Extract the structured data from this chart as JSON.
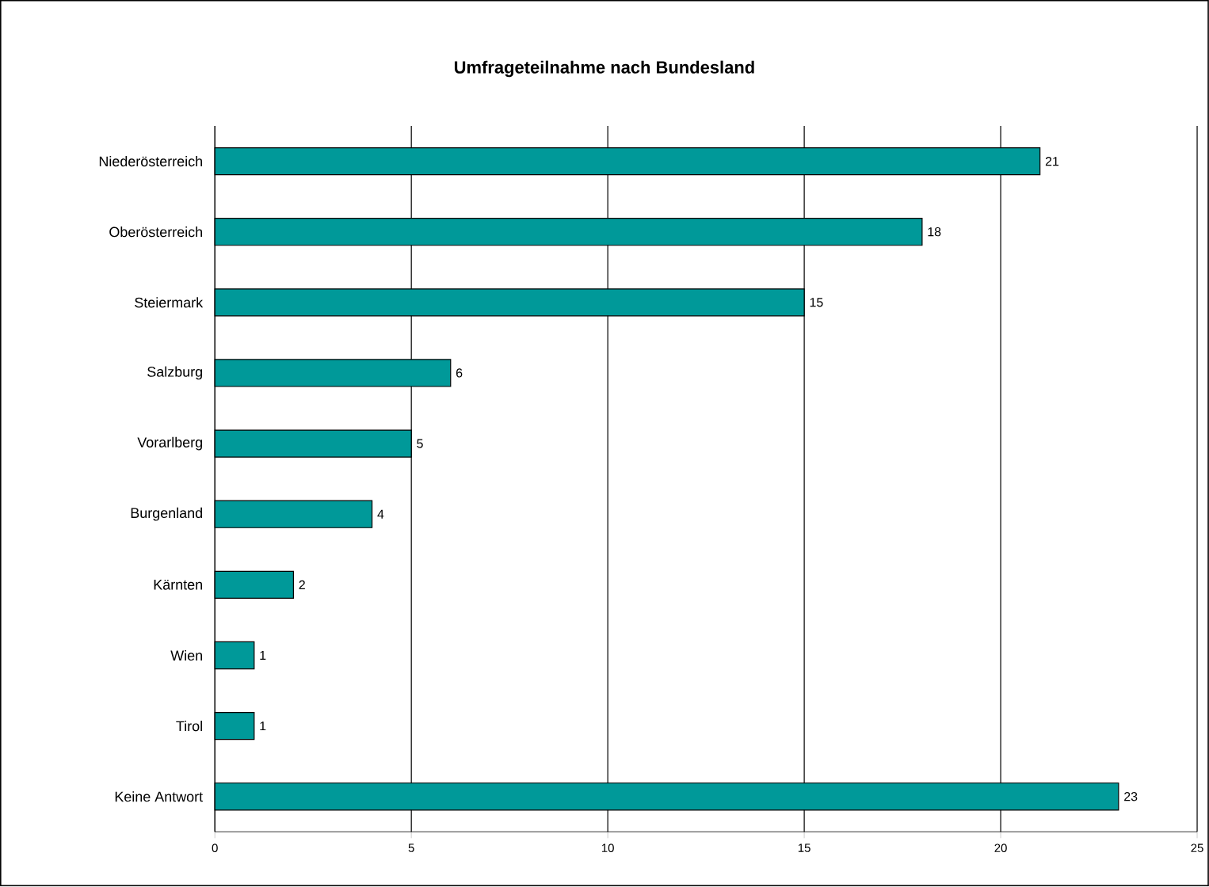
{
  "chart_data": {
    "type": "bar",
    "orientation": "horizontal",
    "title": "Umfrageteilnahme nach Bundesland",
    "categories": [
      "Niederösterreich",
      "Oberösterreich",
      "Steiermark",
      "Salzburg",
      "Vorarlberg",
      "Burgenland",
      "Kärnten",
      "Wien",
      "Tirol",
      "Keine Antwort"
    ],
    "values": [
      21,
      18,
      15,
      6,
      5,
      4,
      2,
      1,
      1,
      23
    ],
    "color": "#009999",
    "xlim": [
      0,
      25
    ],
    "xticks": [
      0,
      5,
      10,
      15,
      20,
      25
    ],
    "grid": "x",
    "data_labels": true
  }
}
